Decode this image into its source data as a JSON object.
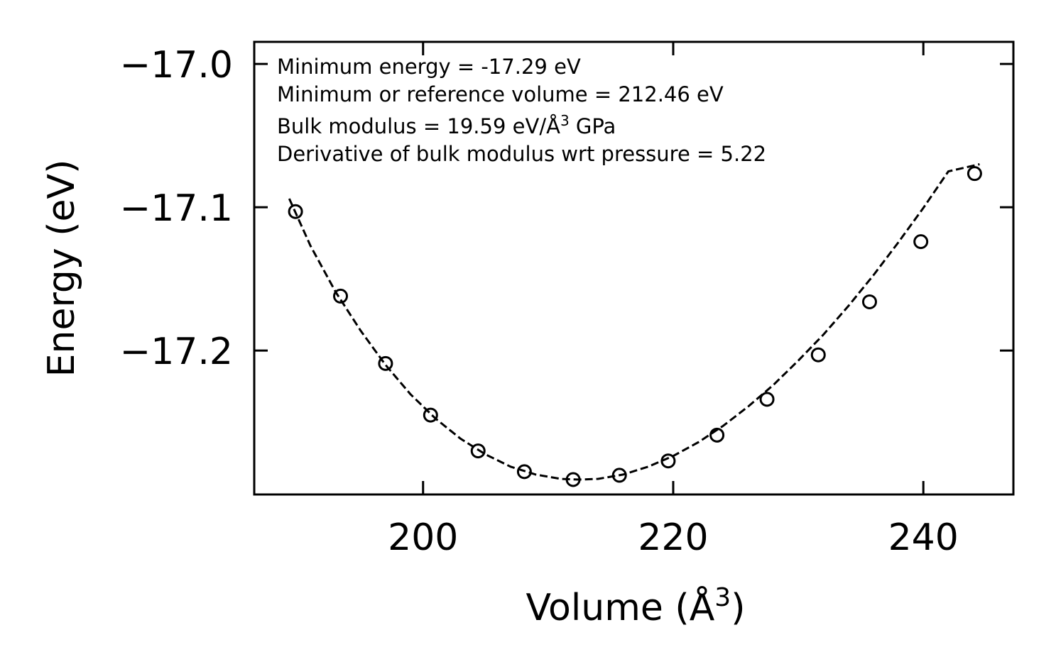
{
  "chart_data": {
    "type": "scatter",
    "title": "",
    "xlabel": "Volume (Å",
    "xlabel_sup": "3",
    "xlabel_end": ")",
    "ylabel": "Energy (eV)",
    "xlim": [
      186.5,
      247.2
    ],
    "ylim": [
      -17.3004,
      -16.9846
    ],
    "x_ticks": [
      200,
      220,
      240
    ],
    "x_tick_labels": [
      "200",
      "220",
      "240"
    ],
    "y_ticks": [
      -17.0,
      -17.1,
      -17.2
    ],
    "y_tick_labels": [
      "−17.0",
      "−17.1",
      "−17.2"
    ],
    "grid": false,
    "legend": "none",
    "annotations": [
      {
        "text": "Minimum energy = -17.29 eV"
      },
      {
        "text": "Minimum or reference volume = 212.46 eV"
      },
      {
        "text": "Bulk modulus = 19.59 eV/Å",
        "sup": "3",
        "suffix": " GPa"
      },
      {
        "text": "Derivative of bulk modulus wrt pressure = 5.22"
      }
    ],
    "series": [
      {
        "name": "data",
        "style": "open-circle",
        "x": [
          189.8,
          193.4,
          197.0,
          200.6,
          204.4,
          208.1,
          212.0,
          215.7,
          219.6,
          223.5,
          227.5,
          231.6,
          235.7,
          239.8,
          244.1
        ],
        "y": [
          -17.103,
          -17.162,
          -17.209,
          -17.245,
          -17.27,
          -17.2845,
          -17.29,
          -17.287,
          -17.277,
          -17.259,
          -17.234,
          -17.203,
          -17.166,
          -17.124,
          -17.0765
        ]
      },
      {
        "name": "fit",
        "style": "dashed-line",
        "x": [
          189.3,
          191.0,
          193.0,
          195.0,
          197.0,
          199.0,
          201.0,
          203.0,
          205.0,
          207.0,
          209.0,
          211.0,
          212.46,
          214.0,
          216.0,
          218.0,
          220.0,
          222.0,
          224.0,
          226.0,
          228.0,
          230.0,
          232.0,
          234.0,
          236.0,
          238.0,
          240.0,
          242.0,
          244.5
        ],
        "y": [
          -17.094,
          -17.127,
          -17.159,
          -17.186,
          -17.21,
          -17.2305,
          -17.2475,
          -17.2615,
          -17.2725,
          -17.281,
          -17.2865,
          -17.2895,
          -17.29,
          -17.2895,
          -17.2865,
          -17.281,
          -17.2735,
          -17.264,
          -17.2525,
          -17.239,
          -17.224,
          -17.207,
          -17.189,
          -17.169,
          -17.1475,
          -17.1245,
          -17.1005,
          -17.075,
          -17.07
        ]
      }
    ],
    "colors": {
      "line": "#000000",
      "background": "#ffffff"
    }
  }
}
